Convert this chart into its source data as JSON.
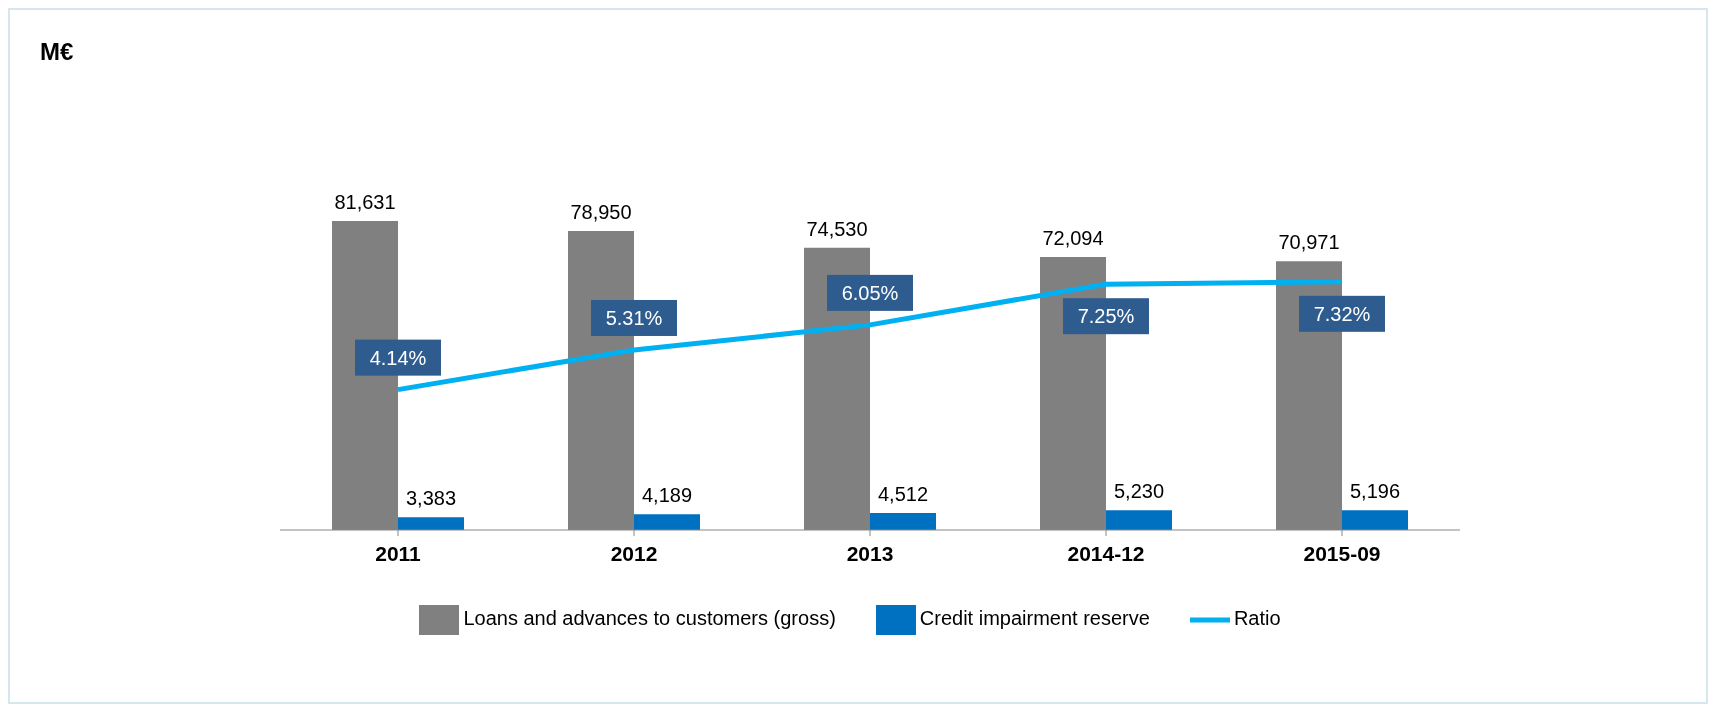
{
  "chart_data": {
    "type": "bar",
    "title": "M€",
    "categories": [
      "2011",
      "2012",
      "2013",
      "2014-12",
      "2015-09"
    ],
    "series": [
      {
        "name": "Loans and advances to customers (gross)",
        "color": "#808080",
        "values": [
          81631,
          78950,
          74530,
          72094,
          70971
        ],
        "value_labels": [
          "81,631",
          "78,950",
          "74,530",
          "72,094",
          "70,971"
        ]
      },
      {
        "name": "Credit impairment reserve",
        "color": "#0070c0",
        "values": [
          3383,
          4189,
          4512,
          5230,
          5196
        ],
        "value_labels": [
          "3,383",
          "4,189",
          "4,512",
          "5,230",
          "5,196"
        ]
      },
      {
        "name": "Ratio",
        "type": "line",
        "axis": "y2",
        "color": "#00b0f0",
        "values": [
          4.14,
          5.31,
          6.05,
          7.25,
          7.32
        ],
        "value_labels": [
          "4.14%",
          "5.31%",
          "6.05%",
          "7.25%",
          "7.32%"
        ]
      }
    ],
    "legend": "bottom",
    "tick_labels": "x",
    "grid": false,
    "marker": "none"
  }
}
